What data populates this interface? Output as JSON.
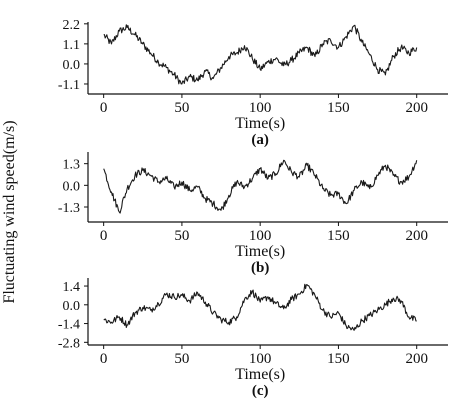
{
  "figure": {
    "ylabel": "Fluctuating wind speed(m/s)",
    "xlabel": "Time(s)"
  },
  "chart_data": [
    {
      "type": "line",
      "panel_label": "(a)",
      "xlabel": "Time(s)",
      "ylabel": "Fluctuating wind speed(m/s)",
      "xlim": [
        -10,
        220
      ],
      "ylim": [
        -1.65,
        2.3
      ],
      "xticks": [
        0,
        50,
        100,
        150,
        200
      ],
      "yticks": [
        -1.1,
        0.0,
        1.1,
        2.2
      ],
      "ytick_labels": [
        "-1.1",
        "0.0",
        "1.1",
        "2.2"
      ],
      "series": [
        {
          "x": [
            0,
            5,
            10,
            15,
            20,
            25,
            30,
            35,
            40,
            45,
            50,
            55,
            60,
            65,
            70,
            75,
            80,
            85,
            90,
            95,
            100,
            105,
            110,
            115,
            120,
            125,
            130,
            135,
            140,
            145,
            150,
            155,
            160,
            165,
            170,
            175,
            180,
            185,
            190,
            195,
            200
          ],
          "y": [
            1.6,
            1.1,
            1.8,
            2.0,
            1.6,
            1.1,
            0.6,
            0.1,
            -0.2,
            -0.6,
            -1.1,
            -0.7,
            -0.9,
            -0.4,
            -0.8,
            -0.2,
            0.4,
            0.6,
            1.0,
            0.3,
            -0.3,
            0.1,
            0.3,
            -0.1,
            0.2,
            0.6,
            0.9,
            0.4,
            1.1,
            1.3,
            0.9,
            1.5,
            2.1,
            1.2,
            0.5,
            -0.3,
            -0.6,
            0.4,
            0.9,
            0.6,
            0.9
          ]
        }
      ]
    },
    {
      "type": "line",
      "panel_label": "(b)",
      "xlabel": "Time(s)",
      "ylabel": "",
      "xlim": [
        -10,
        220
      ],
      "ylim": [
        -2.2,
        2.0
      ],
      "xticks": [
        0,
        50,
        100,
        150,
        200
      ],
      "yticks": [
        -1.3,
        0.0,
        1.3
      ],
      "ytick_labels": [
        "-1.3",
        "0.0",
        "1.3"
      ],
      "series": [
        {
          "x": [
            0,
            5,
            10,
            15,
            20,
            25,
            30,
            35,
            40,
            45,
            50,
            55,
            60,
            65,
            70,
            75,
            80,
            85,
            90,
            95,
            100,
            105,
            110,
            115,
            120,
            125,
            130,
            135,
            140,
            145,
            150,
            155,
            160,
            165,
            170,
            175,
            180,
            185,
            190,
            195,
            200
          ],
          "y": [
            1.0,
            -0.4,
            -1.6,
            -0.2,
            0.6,
            0.9,
            0.6,
            0.2,
            0.4,
            -0.1,
            0.2,
            -0.3,
            -0.1,
            -0.8,
            -1.1,
            -1.5,
            -0.6,
            0.2,
            -0.1,
            0.4,
            1.0,
            0.4,
            0.7,
            1.5,
            0.8,
            0.5,
            1.2,
            0.6,
            -0.2,
            -0.6,
            -0.5,
            -1.1,
            -0.3,
            0.2,
            -0.2,
            0.6,
            1.2,
            0.6,
            0.2,
            0.5,
            1.5
          ]
        }
      ]
    },
    {
      "type": "line",
      "panel_label": "(c)",
      "xlabel": "Time(s)",
      "ylabel": "",
      "xlim": [
        -10,
        220
      ],
      "ylim": [
        -3.0,
        2.0
      ],
      "xticks": [
        0,
        50,
        100,
        150,
        200
      ],
      "yticks": [
        -2.8,
        -1.4,
        0.0,
        1.4
      ],
      "ytick_labels": [
        "-2.8",
        "-1.4",
        "0.0",
        "1.4"
      ],
      "series": [
        {
          "x": [
            0,
            5,
            10,
            15,
            20,
            25,
            30,
            35,
            40,
            45,
            50,
            55,
            60,
            65,
            70,
            75,
            80,
            85,
            90,
            95,
            100,
            105,
            110,
            115,
            120,
            125,
            130,
            135,
            140,
            145,
            150,
            155,
            160,
            165,
            170,
            175,
            180,
            185,
            190,
            195,
            200
          ],
          "y": [
            -1.1,
            -1.3,
            -0.9,
            -1.5,
            -0.6,
            -0.2,
            -0.4,
            0.1,
            0.8,
            0.6,
            0.7,
            0.3,
            0.9,
            0.2,
            -0.6,
            -1.1,
            -1.3,
            -0.9,
            0.4,
            1.0,
            0.2,
            0.6,
            0.1,
            -0.3,
            0.4,
            0.8,
            1.5,
            0.7,
            -0.4,
            -0.9,
            -0.6,
            -1.6,
            -1.9,
            -1.2,
            -0.8,
            -0.4,
            0.0,
            0.5,
            0.3,
            -0.9,
            -1.2
          ]
        }
      ]
    }
  ]
}
